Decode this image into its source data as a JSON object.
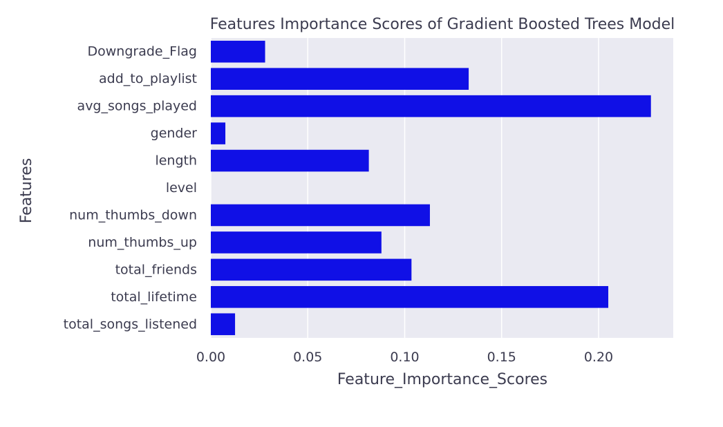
{
  "chart_data": {
    "type": "bar",
    "orientation": "horizontal",
    "title": "Features Importance Scores of Gradient Boosted Trees Model",
    "xlabel": "Feature_Importance_Scores",
    "ylabel": "Features",
    "categories": [
      "Downgrade_Flag",
      "add_to_playlist",
      "avg_songs_played",
      "gender",
      "length",
      "level",
      "num_thumbs_down",
      "num_thumbs_up",
      "total_friends",
      "total_lifetime",
      "total_songs_listened"
    ],
    "values": [
      0.028,
      0.133,
      0.227,
      0.0075,
      0.0815,
      0.0,
      0.113,
      0.088,
      0.1035,
      0.205,
      0.0125
    ],
    "xticks": [
      "0.00",
      "0.05",
      "0.10",
      "0.15",
      "0.20"
    ],
    "xtick_values": [
      0,
      0.05,
      0.1,
      0.15,
      0.2
    ],
    "xlim": [
      0,
      0.2385
    ],
    "grid": true,
    "colors": {
      "bar": "#1010e6",
      "plot_background": "#eaeaf2",
      "grid": "#ffffff",
      "text": "#3b3b4f"
    }
  }
}
